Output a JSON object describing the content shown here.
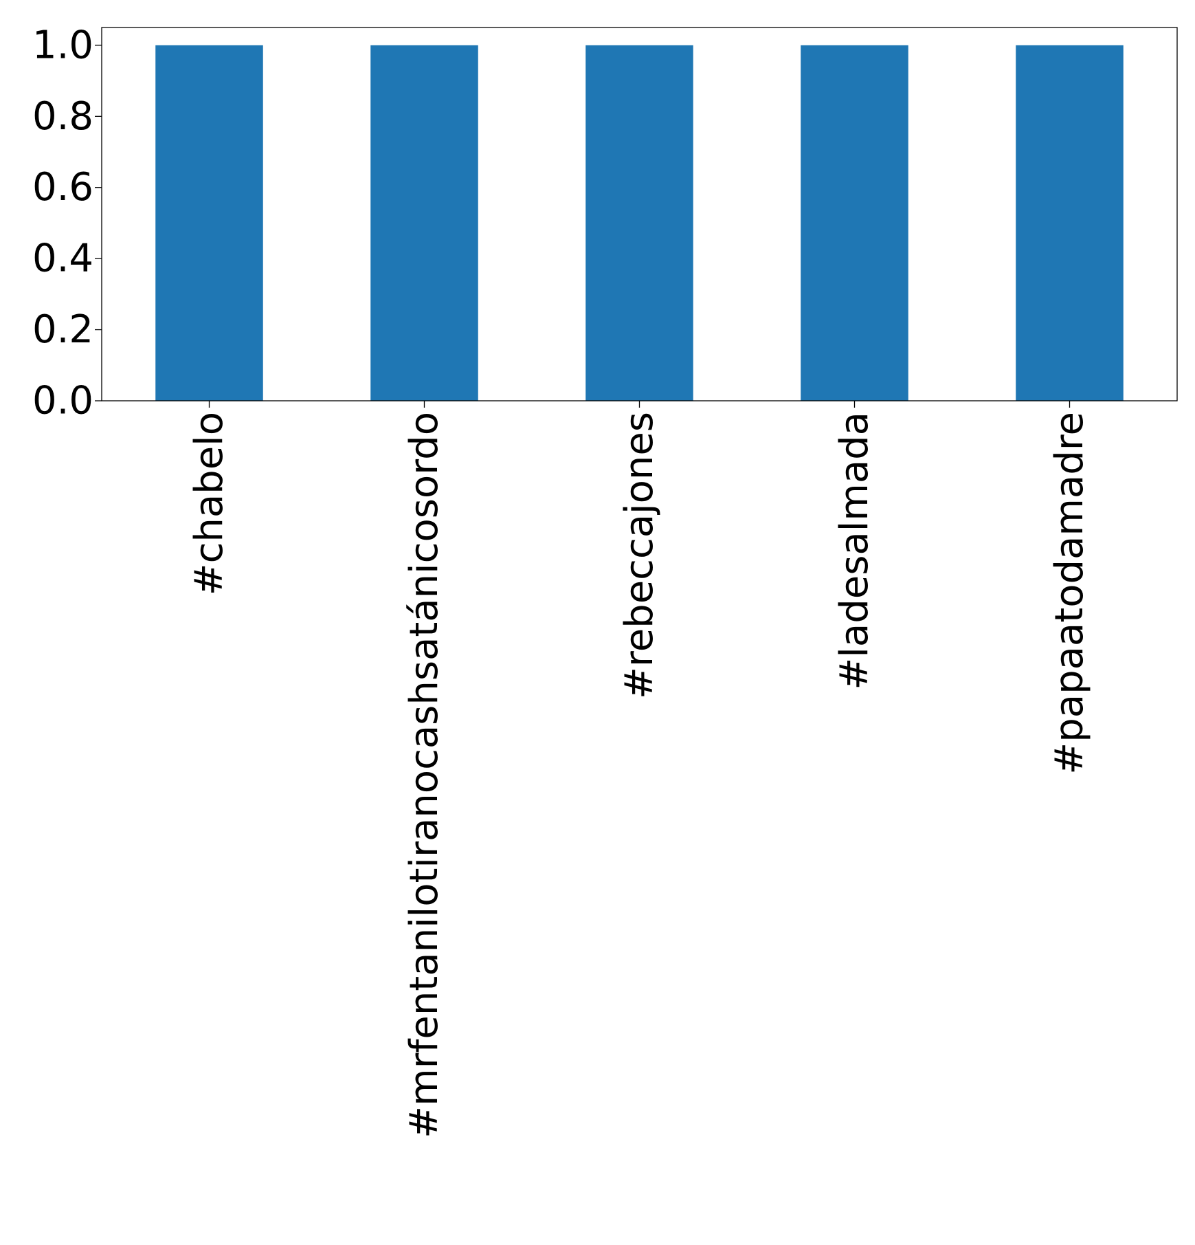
{
  "chart_data": {
    "type": "bar",
    "title": "",
    "xlabel": "",
    "ylabel": "",
    "categories": [
      "#chabelo",
      "#mrfentanilotiranocashsatánicosordo",
      "#rebeccajones",
      "#ladesalmada",
      "#papaatodamadre"
    ],
    "values": [
      1.0,
      1.0,
      1.0,
      1.0,
      1.0
    ],
    "ylim": [
      0.0,
      1.05
    ],
    "yticks": [
      0.0,
      0.2,
      0.4,
      0.6,
      0.8,
      1.0
    ],
    "ytick_labels": [
      "0.0",
      "0.2",
      "0.4",
      "0.6",
      "0.8",
      "1.0"
    ],
    "grid": false,
    "legend": "none",
    "bar_color": "#1f77b4"
  }
}
